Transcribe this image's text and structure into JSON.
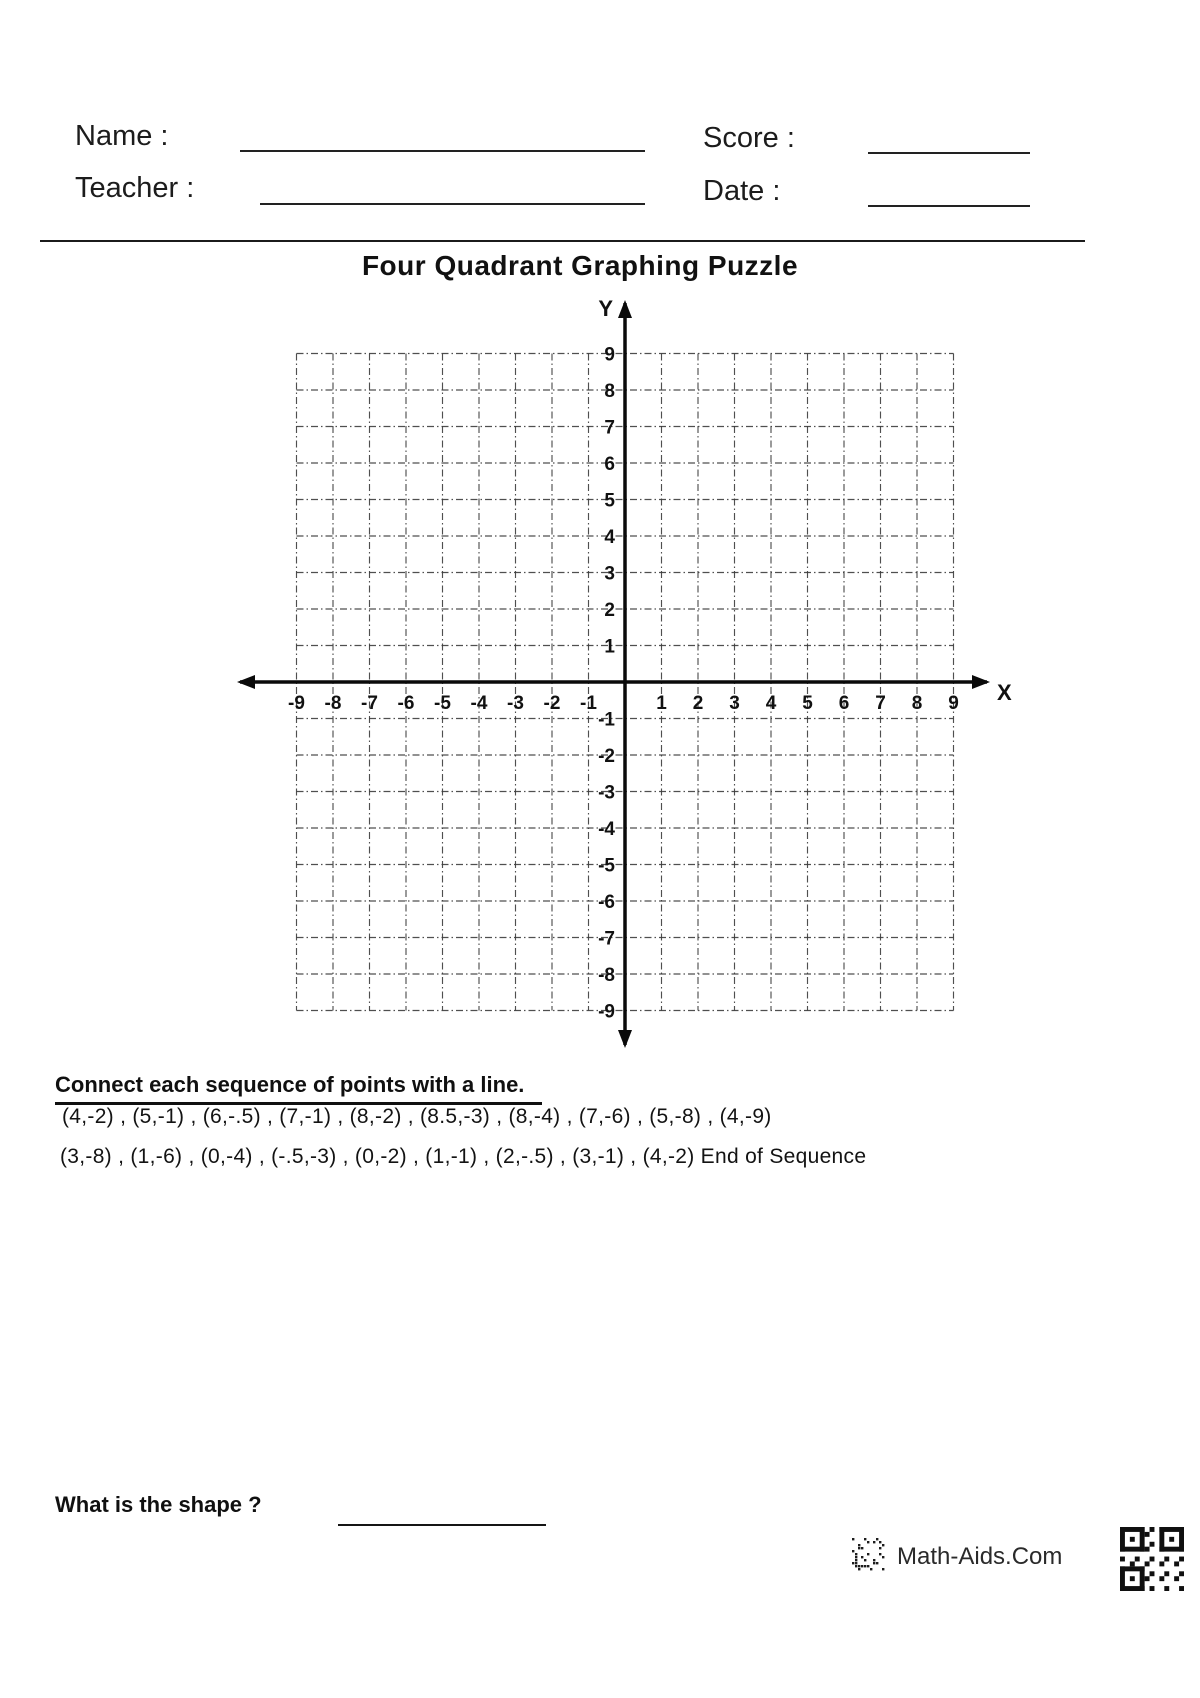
{
  "header": {
    "name_label": "Name :",
    "teacher_label": "Teacher :",
    "score_label": "Score :",
    "date_label": "Date :"
  },
  "title": "Four Quadrant Graphing Puzzle",
  "graph": {
    "x_axis_label": "X",
    "y_axis_label": "Y",
    "x_min": -9,
    "x_max": 9,
    "y_min": -9,
    "y_max": 9,
    "x_ticks": [
      -9,
      -8,
      -7,
      -6,
      -5,
      -4,
      -3,
      -2,
      -1,
      1,
      2,
      3,
      4,
      5,
      6,
      7,
      8,
      9
    ],
    "y_ticks": [
      9,
      8,
      7,
      6,
      5,
      4,
      3,
      2,
      1,
      -1,
      -2,
      -3,
      -4,
      -5,
      -6,
      -7,
      -8,
      -9
    ]
  },
  "instructions": {
    "heading": "Connect each sequence of points with a line.",
    "sequences": [
      "(4,-2) , (5,-1) , (6,-.5) , (7,-1) , (8,-2) , (8.5,-3) , (8,-4) , (7,-6) , (5,-8) , (4,-9)",
      "(3,-8) , (1,-6) , (0,-4) , (-.5,-3) , (0,-2) , (1,-1) , (2,-.5) , (3,-1) , (4,-2) End of Sequence"
    ]
  },
  "question": {
    "label": "What is the shape ?"
  },
  "footer": {
    "brand": "Math-Aids.Com"
  },
  "colors": {
    "ink": "#111111",
    "gridline": "#3d3d3d",
    "axis": "#0a0a0a"
  }
}
